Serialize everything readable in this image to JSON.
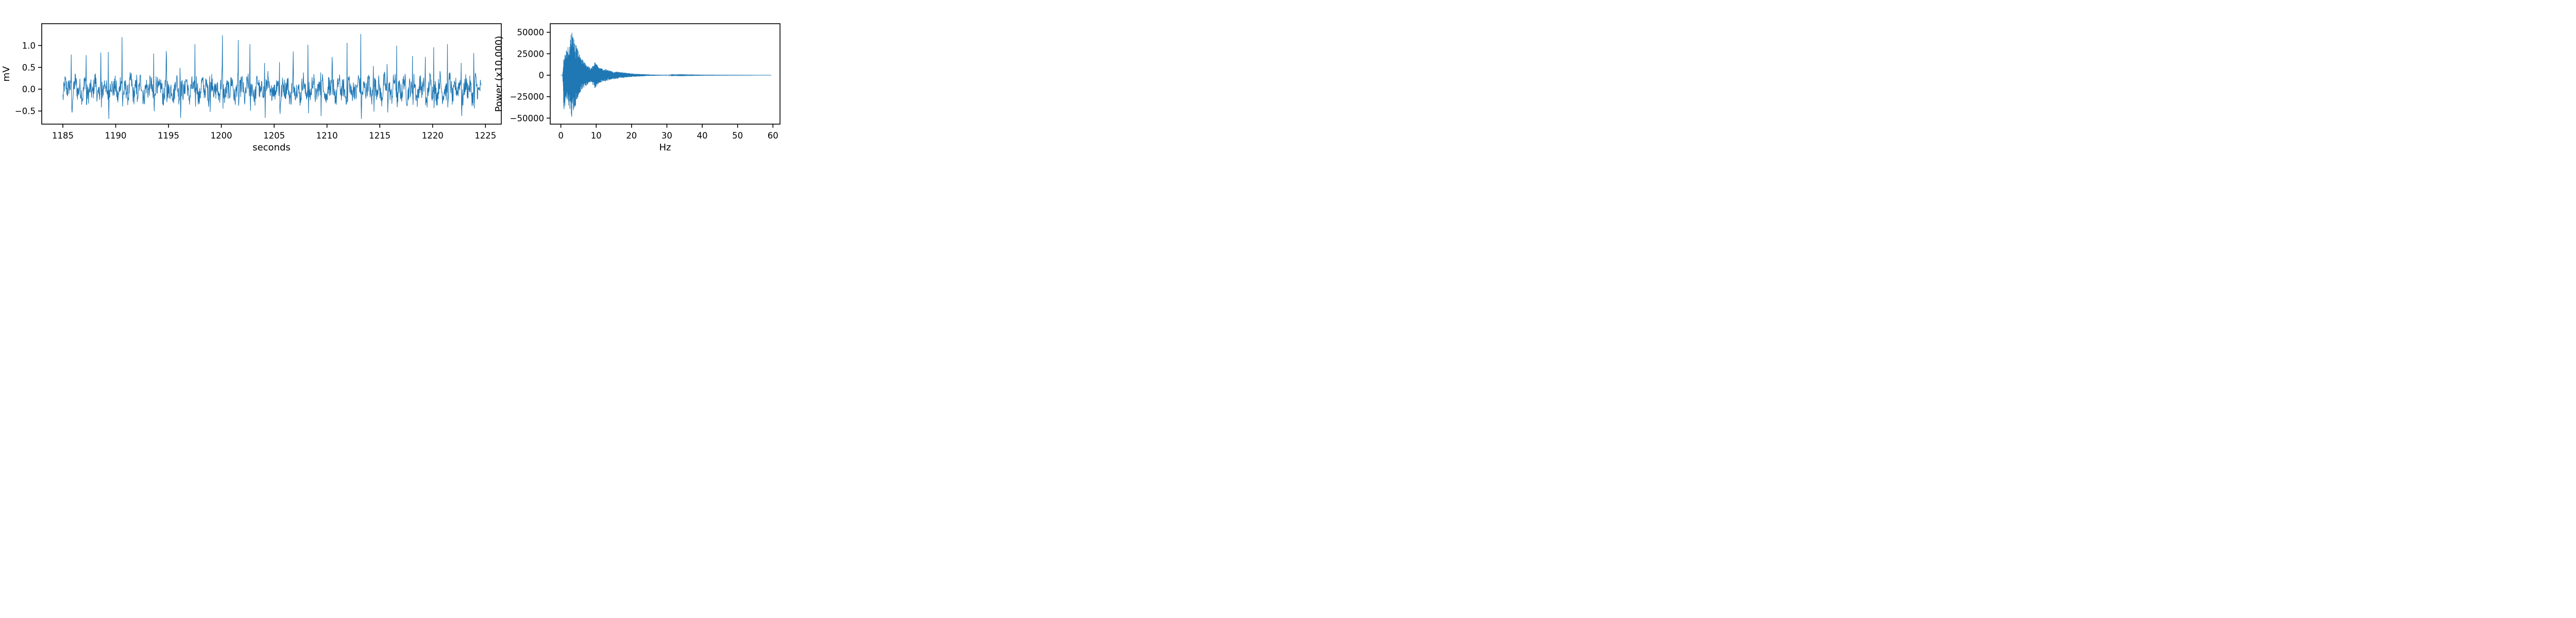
{
  "chart_data": [
    {
      "type": "line",
      "title": "",
      "xlabel": "seconds",
      "ylabel": "mV",
      "xlim": [
        1183,
        1226.5
      ],
      "ylim": [
        -0.8,
        1.5
      ],
      "xticks": [
        1185,
        1190,
        1195,
        1200,
        1205,
        1210,
        1215,
        1220,
        1225
      ],
      "yticks": [
        -0.5,
        0.0,
        0.5,
        1.0
      ],
      "xtick_labels": [
        "1185",
        "1190",
        "1195",
        "1200",
        "1205",
        "1210",
        "1215",
        "1220",
        "1225"
      ],
      "ytick_labels": [
        "−0.5",
        "0.0",
        "0.5",
        "1.0"
      ],
      "color": "#1f77b4",
      "grid": false,
      "series": [
        {
          "x_range": [
            1185,
            1224.6
          ],
          "description_values": {
            "baseline_mv": 0.0,
            "min_mv": -0.68,
            "max_mv": 1.3,
            "beat_times_s": [
              1185.8,
              1187.2,
              1188.6,
              1189.3,
              1190.6,
              1192.0,
              1193.6,
              1194.8,
              1196.1,
              1197.5,
              1198.9,
              1200.1,
              1201.6,
              1202.7,
              1204.1,
              1205.5,
              1206.8,
              1208.2,
              1209.4,
              1210.5,
              1211.9,
              1213.2,
              1214.4,
              1215.7,
              1216.6,
              1218.1,
              1219.3,
              1220.1,
              1221.4,
              1222.7,
              1223.9
            ],
            "beat_peaks_mv": [
              1.22,
              0.75,
              0.9,
              1.15,
              1.1,
              1.0,
              1.1,
              1.05,
              1.1,
              1.05,
              1.1,
              1.15,
              1.05,
              1.15,
              1.0,
              0.95,
              0.9,
              1.1,
              1.0,
              1.05,
              0.95,
              1.27,
              1.0,
              0.95,
              1.3,
              1.0,
              1.05,
              1.3,
              1.1,
              0.95,
              1.05
            ]
          }
        }
      ]
    },
    {
      "type": "line",
      "title": "",
      "xlabel": "Hz",
      "ylabel": "Power (x10,000)",
      "xlim": [
        -3,
        62
      ],
      "ylim": [
        -57000,
        60000
      ],
      "xticks": [
        0,
        10,
        20,
        30,
        40,
        50,
        60
      ],
      "yticks": [
        -50000,
        -25000,
        0,
        25000,
        50000
      ],
      "xtick_labels": [
        "0",
        "10",
        "20",
        "30",
        "40",
        "50",
        "60"
      ],
      "ytick_labels": [
        "−50000",
        "−25000",
        "0",
        "25000",
        "50000"
      ],
      "color": "#1f77b4",
      "grid": false,
      "series": [
        {
          "x_range": [
            0,
            59.5
          ],
          "envelope": {
            "freq_hz": [
              0.0,
              0.5,
              0.8,
              1.5,
              2.5,
              3.0,
              3.5,
              4.5,
              5.5,
              7.0,
              8.5,
              9.5,
              11.0,
              14.0,
              17.0,
              20.0,
              25.0,
              30.0,
              40.0,
              59.5
            ],
            "upper": [
              0,
              0,
              20000,
              30000,
              38000,
              55000,
              48000,
              33000,
              22000,
              14000,
              8000,
              16000,
              9000,
              5500,
              3500,
              2000,
              800,
              300,
              100,
              0
            ],
            "lower": [
              0,
              0,
              -42000,
              -30000,
              -38000,
              -50000,
              -45000,
              -32000,
              -20000,
              -13000,
              -8000,
              -16000,
              -9000,
              -5500,
              -3500,
              -2000,
              -800,
              -300,
              -100,
              0
            ]
          }
        }
      ]
    }
  ]
}
